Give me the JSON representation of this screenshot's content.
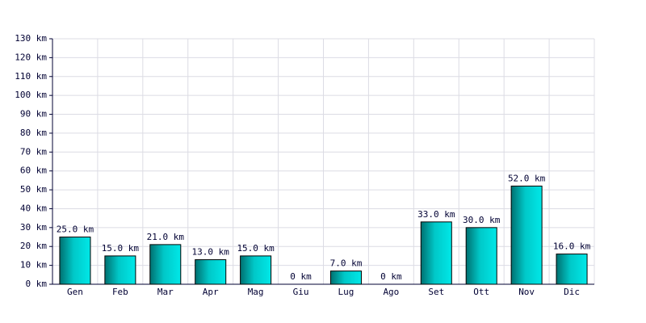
{
  "chart_data": {
    "type": "bar",
    "categories": [
      "Gen",
      "Feb",
      "Mar",
      "Apr",
      "Mag",
      "Giu",
      "Lug",
      "Ago",
      "Set",
      "Ott",
      "Nov",
      "Dic"
    ],
    "values": [
      25,
      15,
      21,
      13,
      15,
      0,
      7,
      0,
      33,
      30,
      52,
      16
    ],
    "value_labels": [
      "25.0 km",
      "15.0 km",
      "21.0 km",
      "13.0 km",
      "15.0 km",
      "0 km",
      "7.0 km",
      "0 km",
      "33.0 km",
      "30.0 km",
      "52.0 km",
      "16.0 km"
    ],
    "color": "#00c8c8",
    "ylim": [
      0,
      130
    ],
    "yticks": [
      {
        "value": 0,
        "label": "0 km"
      },
      {
        "value": 10,
        "label": "10 km"
      },
      {
        "value": 20,
        "label": "20 km"
      },
      {
        "value": 30,
        "label": "30 km"
      },
      {
        "value": 40,
        "label": "40 km"
      },
      {
        "value": 50,
        "label": "50 km"
      },
      {
        "value": 60,
        "label": "60 km"
      },
      {
        "value": 70,
        "label": "70 km"
      },
      {
        "value": 80,
        "label": "80 km"
      },
      {
        "value": 90,
        "label": "90 km"
      },
      {
        "value": 100,
        "label": "100 km"
      },
      {
        "value": 110,
        "label": "110 km"
      },
      {
        "value": 120,
        "label": "120 km"
      },
      {
        "value": 130,
        "label": "130 km"
      }
    ],
    "grid": true
  }
}
